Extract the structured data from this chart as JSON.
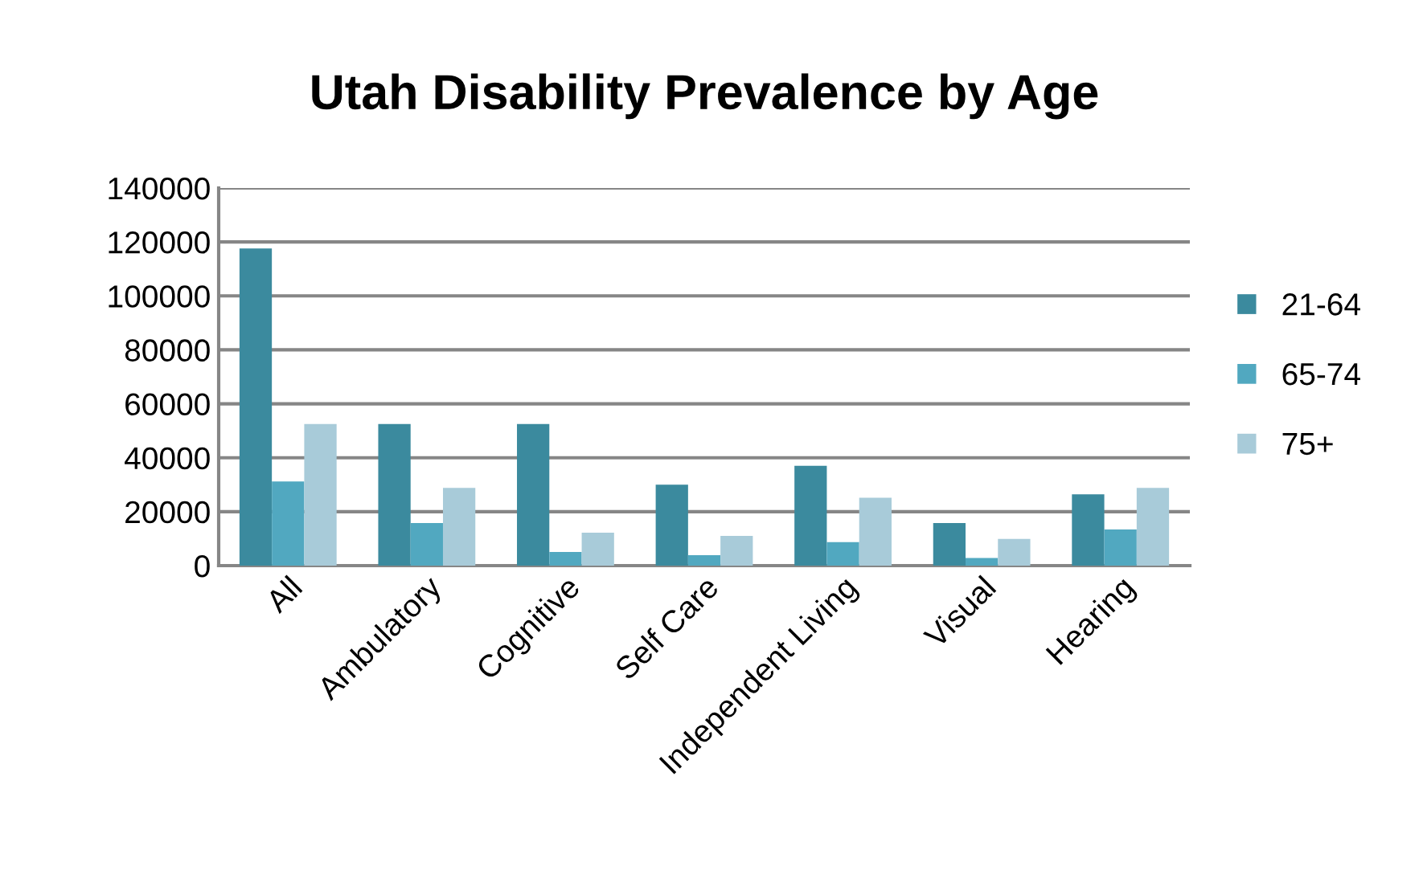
{
  "chart_data": {
    "type": "bar",
    "title": "Utah Disability Prevalence by Age",
    "categories": [
      "All",
      "Ambulatory",
      "Cognitive",
      "Self Care",
      "Independent Living",
      "Visual",
      "Hearing"
    ],
    "series": [
      {
        "name": "21-64",
        "color": "#3b8a9e",
        "values": [
          117600,
          52500,
          52500,
          30000,
          37000,
          15800,
          26400
        ]
      },
      {
        "name": "65-74",
        "color": "#51a8c0",
        "values": [
          31200,
          15800,
          5100,
          3900,
          8700,
          2800,
          13400
        ]
      },
      {
        "name": "75+",
        "color": "#a8cbd9",
        "values": [
          52500,
          28800,
          12200,
          11000,
          25200,
          9900,
          28800
        ]
      }
    ],
    "ylim": [
      0,
      140000
    ],
    "yticks": [
      0,
      20000,
      40000,
      60000,
      80000,
      100000,
      120000,
      140000
    ],
    "grid": "y",
    "legend": "right"
  }
}
